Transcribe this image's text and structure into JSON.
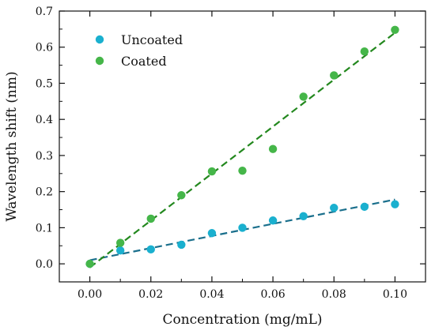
{
  "chart_data": {
    "type": "scatter",
    "title": "",
    "xlabel": "Concentration (mg/mL)",
    "ylabel": "Wavelength shift (nm)",
    "xlim": [
      -0.01,
      0.11
    ],
    "ylim": [
      -0.05,
      0.7
    ],
    "xticks": [
      0.0,
      0.02,
      0.04,
      0.06,
      0.08,
      0.1
    ],
    "xtick_labels": [
      "0.00",
      "0.02",
      "0.04",
      "0.06",
      "0.08",
      "0.10"
    ],
    "yticks": [
      0.0,
      0.1,
      0.2,
      0.3,
      0.4,
      0.5,
      0.6,
      0.7
    ],
    "ytick_labels": [
      "0.0",
      "0.1",
      "0.2",
      "0.3",
      "0.4",
      "0.5",
      "0.6",
      "0.7"
    ],
    "grid": false,
    "legend": "top-left",
    "series": [
      {
        "name": "Uncoated",
        "color": "#1ab0cf",
        "x": [
          0.0,
          0.01,
          0.02,
          0.03,
          0.04,
          0.05,
          0.06,
          0.07,
          0.08,
          0.09,
          0.1
        ],
        "y": [
          0.0,
          0.037,
          0.04,
          0.053,
          0.085,
          0.1,
          0.12,
          0.132,
          0.155,
          0.158,
          0.165
        ],
        "fit": {
          "color": "#1a6f8c",
          "x": [
            0.0,
            0.1
          ],
          "y": [
            0.01,
            0.178
          ]
        }
      },
      {
        "name": "Coated",
        "color": "#45b649",
        "x": [
          0.0,
          0.01,
          0.02,
          0.03,
          0.04,
          0.05,
          0.06,
          0.07,
          0.08,
          0.09,
          0.1
        ],
        "y": [
          0.0,
          0.058,
          0.125,
          0.19,
          0.256,
          0.258,
          0.318,
          0.463,
          0.522,
          0.588,
          0.648
        ],
        "fit": {
          "color": "#23881e",
          "x": [
            0.0,
            0.1
          ],
          "y": [
            -0.01,
            0.64
          ]
        }
      }
    ]
  }
}
